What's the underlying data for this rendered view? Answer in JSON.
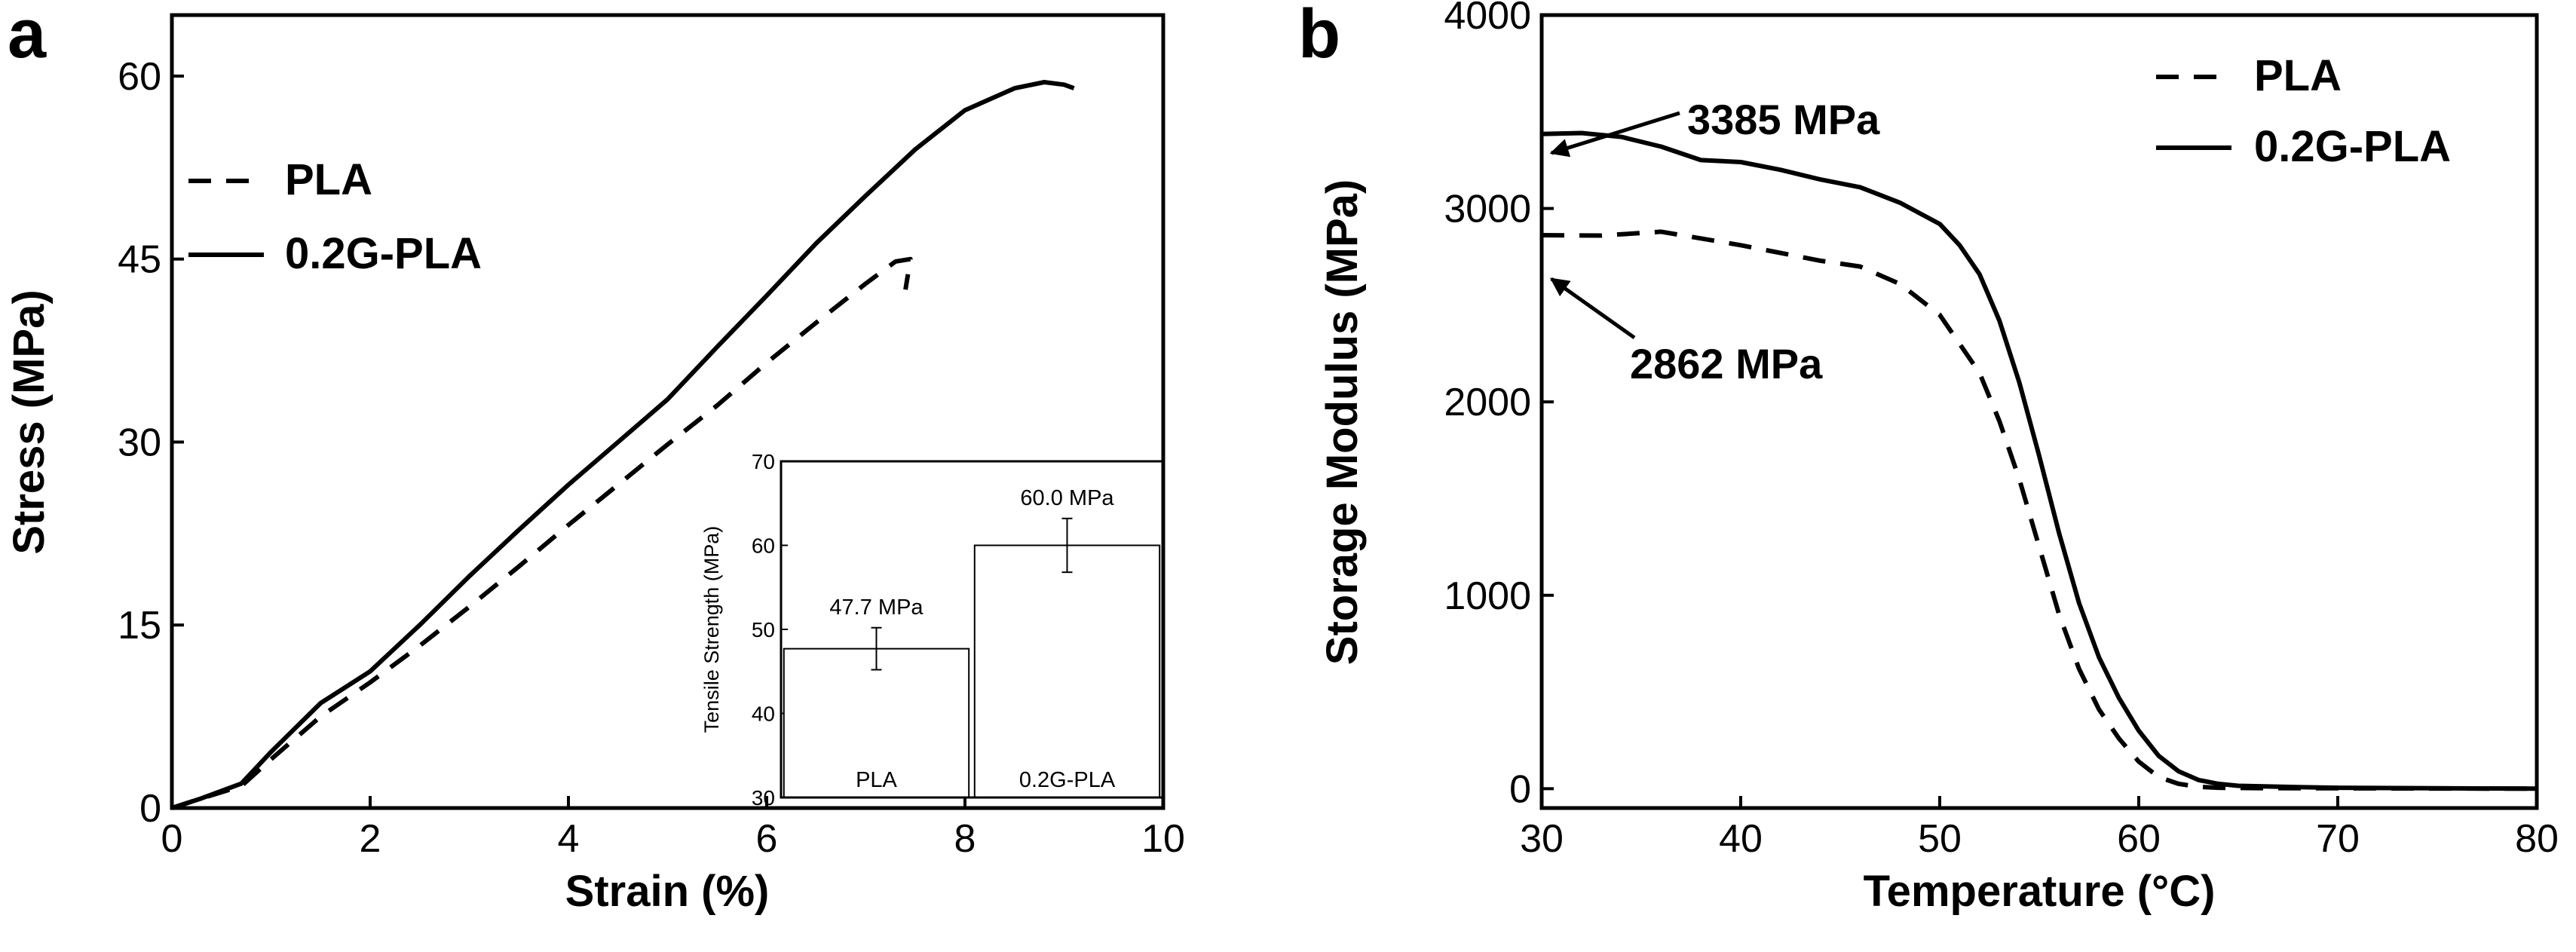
{
  "figure": {
    "panels": [
      {
        "label": "a",
        "title": "",
        "xlabel": "Strain (%)",
        "ylabel": "Stress (MPa)",
        "xlim": [
          0,
          10
        ],
        "ylim": [
          0,
          65
        ],
        "xticks": [
          0,
          2,
          4,
          6,
          8,
          10
        ],
        "yticks": [
          0,
          15,
          30,
          45,
          60
        ],
        "legend": [
          {
            "name": "PLA",
            "style": "dashed"
          },
          {
            "name": "0.2G-PLA",
            "style": "solid"
          }
        ]
      },
      {
        "label": "b",
        "title": "",
        "xlabel": "Temperature (°C)",
        "ylabel": "Storage Modulus (MPa)",
        "xlim": [
          30,
          80
        ],
        "ylim": [
          -100,
          4000
        ],
        "xticks": [
          30,
          40,
          50,
          60,
          70,
          80
        ],
        "yticks": [
          0,
          1000,
          2000,
          3000,
          4000
        ],
        "legend": [
          {
            "name": "PLA",
            "style": "dashed"
          },
          {
            "name": "0.2G-PLA",
            "style": "solid"
          }
        ],
        "annotations": [
          {
            "text": "3385 MPa",
            "x": 30,
            "y": 3385
          },
          {
            "text": "2862 MPa",
            "x": 30,
            "y": 2862
          }
        ]
      }
    ],
    "inset": {
      "ylabel": "Tensile Strength (MPa)",
      "ylim": [
        30,
        70
      ],
      "yticks": [
        30,
        40,
        50,
        60,
        70
      ],
      "bars": [
        {
          "label": "PLA",
          "value": 47.7,
          "error": 2.5,
          "value_label": "47.7 MPa"
        },
        {
          "label": "0.2G-PLA",
          "value": 60.0,
          "error": 3.2,
          "value_label": "60.0 MPa"
        }
      ]
    }
  },
  "chart_data": [
    {
      "type": "line",
      "panel": "a",
      "xlabel": "Strain (%)",
      "ylabel": "Stress (MPa)",
      "xlim": [
        0,
        10
      ],
      "ylim": [
        0,
        65
      ],
      "series": [
        {
          "name": "PLA",
          "style": "dashed",
          "x": [
            0,
            0.3,
            0.7,
            1.0,
            1.5,
            2.0,
            2.5,
            3.0,
            3.5,
            4.0,
            4.5,
            5.0,
            5.5,
            6.0,
            6.5,
            7.0,
            7.3,
            7.45,
            7.4
          ],
          "y": [
            0,
            0.8,
            1.8,
            4.0,
            7.5,
            10.3,
            13.3,
            16.5,
            19.8,
            23.2,
            26.5,
            29.8,
            33.0,
            36.5,
            39.8,
            43.0,
            44.8,
            45.0,
            42.5
          ]
        },
        {
          "name": "0.2G-PLA",
          "style": "solid",
          "x": [
            0,
            0.3,
            0.7,
            1.0,
            1.5,
            2.0,
            2.5,
            3.0,
            3.5,
            4.0,
            4.5,
            5.0,
            5.5,
            6.0,
            6.5,
            7.0,
            7.5,
            8.0,
            8.5,
            8.8,
            9.0,
            9.1
          ],
          "y": [
            0,
            0.8,
            2.0,
            4.6,
            8.6,
            11.2,
            15.0,
            19.0,
            22.8,
            26.5,
            30.0,
            33.5,
            37.8,
            42.0,
            46.3,
            50.2,
            54.0,
            57.2,
            59.0,
            59.5,
            59.3,
            59.0
          ]
        }
      ]
    },
    {
      "type": "bar",
      "panel": "a-inset",
      "categories": [
        "PLA",
        "0.2G-PLA"
      ],
      "values": [
        47.7,
        60.0
      ],
      "errors": [
        2.5,
        3.2
      ],
      "data_labels": [
        "47.7 MPa",
        "60.0 MPa"
      ],
      "ylabel": "Tensile Strength (MPa)",
      "ylim": [
        30,
        70
      ]
    },
    {
      "type": "line",
      "panel": "b",
      "xlabel": "Temperature (°C)",
      "ylabel": "Storage Modulus (MPa)",
      "xlim": [
        30,
        80
      ],
      "ylim": [
        -100,
        4000
      ],
      "series": [
        {
          "name": "PLA",
          "style": "dashed",
          "x": [
            30,
            33,
            36,
            40,
            44,
            46,
            48,
            50,
            52,
            53,
            54,
            55,
            56,
            57,
            58,
            59,
            60,
            61,
            62,
            63,
            64,
            66,
            70,
            75,
            80
          ],
          "y": [
            2862,
            2860,
            2880,
            2810,
            2730,
            2700,
            2610,
            2450,
            2150,
            1900,
            1600,
            1250,
            900,
            620,
            410,
            260,
            140,
            60,
            25,
            10,
            5,
            3,
            2,
            1,
            0
          ]
        },
        {
          "name": "0.2G-PLA",
          "style": "solid",
          "x": [
            30,
            32,
            34,
            36,
            38,
            40,
            42,
            44,
            46,
            48,
            50,
            51,
            52,
            53,
            54,
            55,
            56,
            57,
            58,
            59,
            60,
            61,
            62,
            63,
            64,
            65,
            68,
            70,
            75,
            80
          ],
          "y": [
            3385,
            3390,
            3370,
            3320,
            3250,
            3240,
            3200,
            3150,
            3110,
            3030,
            2920,
            2810,
            2660,
            2420,
            2100,
            1720,
            1320,
            960,
            680,
            470,
            300,
            170,
            90,
            45,
            25,
            15,
            8,
            5,
            2,
            0
          ]
        }
      ],
      "annotations": [
        {
          "text": "3385 MPa",
          "x": 30,
          "y": 3385
        },
        {
          "text": "2862 MPa",
          "x": 30,
          "y": 2862
        }
      ]
    }
  ]
}
